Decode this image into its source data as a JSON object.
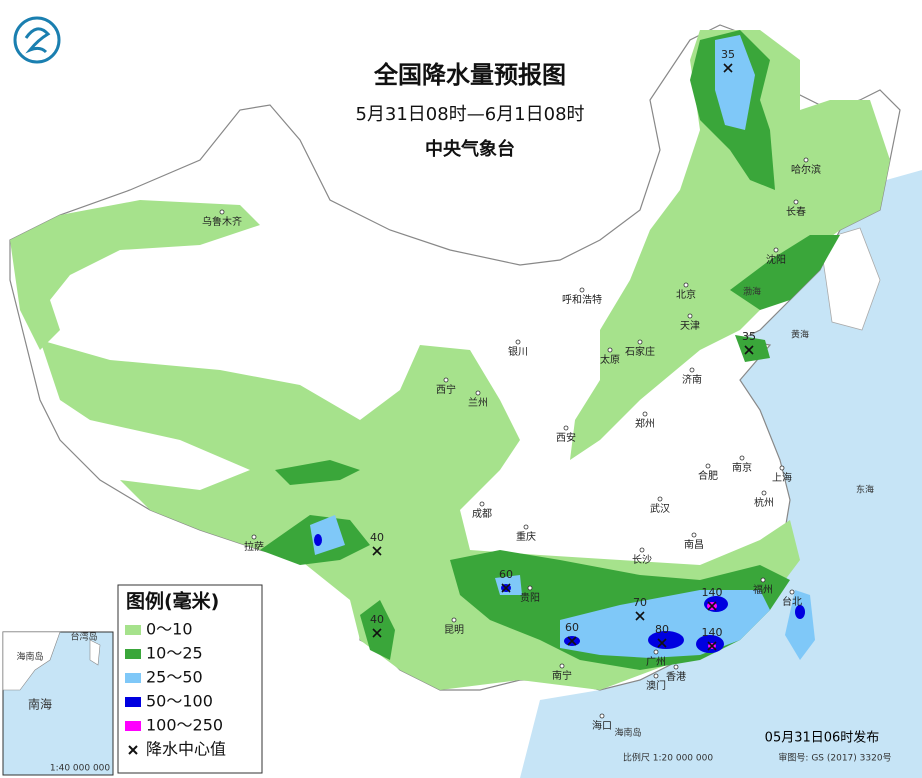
{
  "header": {
    "title": "全国降水量预报图",
    "period": "5月31日08时—6月1日08时",
    "issuer": "中央气象台"
  },
  "legend": {
    "title": "图例(毫米)",
    "items": [
      "0～10",
      "10～25",
      "25～50",
      "50～100",
      "100～250",
      "降水中心值"
    ]
  },
  "rain_centers": [
    35,
    35,
    40,
    40,
    60,
    60,
    70,
    80,
    140,
    140
  ],
  "cities": [
    "乌鲁木齐",
    "呼和浩特",
    "北京",
    "天津",
    "石家庄",
    "太原",
    "银川",
    "西宁",
    "兰州",
    "济南",
    "郑州",
    "西安",
    "成都",
    "重庆",
    "武汉",
    "合肥",
    "南京",
    "上海",
    "杭州",
    "南昌",
    "长沙",
    "贵阳",
    "昆明",
    "南宁",
    "广州",
    "香港",
    "澳门",
    "福州",
    "台北",
    "拉萨",
    "海口",
    "沈阳",
    "长春",
    "哈尔滨"
  ],
  "seas": [
    "渤海",
    "黄海",
    "东海",
    "海南岛"
  ],
  "inset": {
    "labels": [
      "海南岛",
      "南海",
      "台湾岛"
    ],
    "scale": "1:40 000 000"
  },
  "footer": {
    "release": "05月31日06时发布",
    "scale": "比例尺 1:20 000 000",
    "map_number": "审图号: GS (2017) 3320号"
  }
}
